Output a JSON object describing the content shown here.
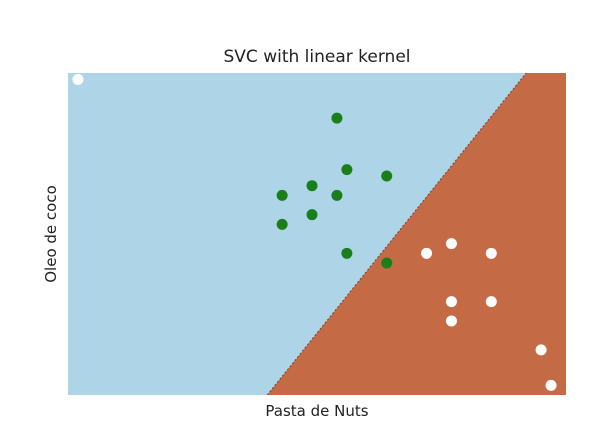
{
  "chart_data": {
    "type": "scatter",
    "title": "SVC with linear kernel",
    "xlabel": "Pasta de Nuts",
    "ylabel": "Oleo de coco",
    "xlim": [
      0,
      100
    ],
    "ylim": [
      0,
      100
    ],
    "grid": false,
    "legend": "none",
    "decision_boundary": {
      "p1": [
        40,
        0
      ],
      "p2": [
        92,
        100
      ]
    },
    "regions": [
      {
        "side": "upper-left",
        "color": "#aed4e8"
      },
      {
        "side": "lower-right",
        "color": "#c46a45"
      }
    ],
    "series": [
      {
        "color": "#1a7f1a",
        "points": [
          [
            54,
            86
          ],
          [
            56,
            70
          ],
          [
            64,
            68
          ],
          [
            49,
            65
          ],
          [
            43,
            62
          ],
          [
            54,
            62
          ],
          [
            49,
            56
          ],
          [
            43,
            53
          ],
          [
            56,
            44
          ],
          [
            64,
            41
          ]
        ]
      },
      {
        "color": "#ffffff",
        "points": [
          [
            2,
            98
          ],
          [
            72,
            44
          ],
          [
            77,
            47
          ],
          [
            85,
            44
          ],
          [
            77,
            29
          ],
          [
            85,
            29
          ],
          [
            77,
            23
          ],
          [
            95,
            14
          ],
          [
            97,
            3
          ]
        ]
      }
    ]
  }
}
